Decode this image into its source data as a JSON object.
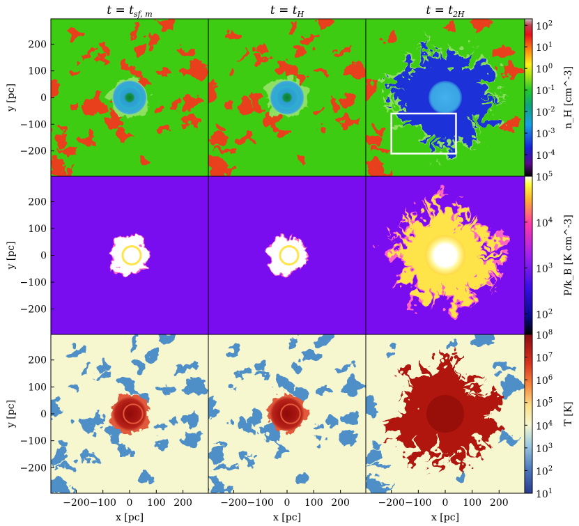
{
  "figure": {
    "columns": [
      {
        "title_main": "t = t",
        "title_sub": "sf, m"
      },
      {
        "title_main": "t = t",
        "title_sub": "H"
      },
      {
        "title_main": "t = t",
        "title_sub": "2H"
      }
    ],
    "x_label": "x [pc]",
    "y_label": "y [pc]",
    "x_ticks": [
      "−200",
      "−100",
      "0",
      "100",
      "200"
    ],
    "x_tick_values": [
      -200,
      -100,
      0,
      100,
      200
    ],
    "y_ticks": [
      "200",
      "100",
      "0",
      "−100",
      "−200"
    ],
    "y_tick_values": [
      200,
      100,
      0,
      -100,
      -200
    ],
    "axis_range_pc": [
      -295,
      295
    ],
    "rows": [
      {
        "quantity": "density",
        "colorbar_label": "n_H [cm^-3]",
        "colorbar_ticks": [
          "10^2",
          "10^1",
          "10^0",
          "10^-1",
          "10^-2",
          "10^-3",
          "10^-4"
        ],
        "colorbar_exponents": [
          2,
          1,
          0,
          -1,
          -2,
          -3,
          -4
        ],
        "colorbar_range_log": [
          -5,
          2.3
        ],
        "colors": {
          "background": "#3ecc12",
          "clump": "#e8401e",
          "bubble": "#2a9fd0",
          "core": "#138a3d",
          "shell": "#8fe060",
          "cavity": "#1a30d8",
          "inner": "#3aa8e8"
        }
      },
      {
        "quantity": "pressure",
        "colorbar_label": "P/k_B [K cm^-3]",
        "colorbar_ticks": [
          "10^5",
          "10^4",
          "10^3",
          "10^2"
        ],
        "colorbar_exponents": [
          5,
          4,
          3,
          2
        ],
        "colorbar_range_log": [
          1.55,
          5.0
        ],
        "colors": {
          "background": "#7a0df0",
          "bubble": "#ffffff",
          "rim": "#ffe44a",
          "edge": "#ff66c4"
        }
      },
      {
        "quantity": "temperature",
        "colorbar_label": "T [K]",
        "colorbar_ticks": [
          "10^8",
          "10^7",
          "10^6",
          "10^5",
          "10^4",
          "10^3",
          "10^2",
          "10^1"
        ],
        "colorbar_exponents": [
          8,
          7,
          6,
          5,
          4,
          3,
          2,
          1
        ],
        "colorbar_range_log": [
          1,
          8
        ],
        "colors": {
          "background": "#f6f6cf",
          "clump": "#4f8fc8",
          "bubble": "#b0160e",
          "core": "#8f0b09",
          "rim": "#e25a3a"
        }
      }
    ],
    "inset_box_pc": {
      "x0": -200,
      "x1": 40,
      "y0": -210,
      "y1": -60
    }
  }
}
